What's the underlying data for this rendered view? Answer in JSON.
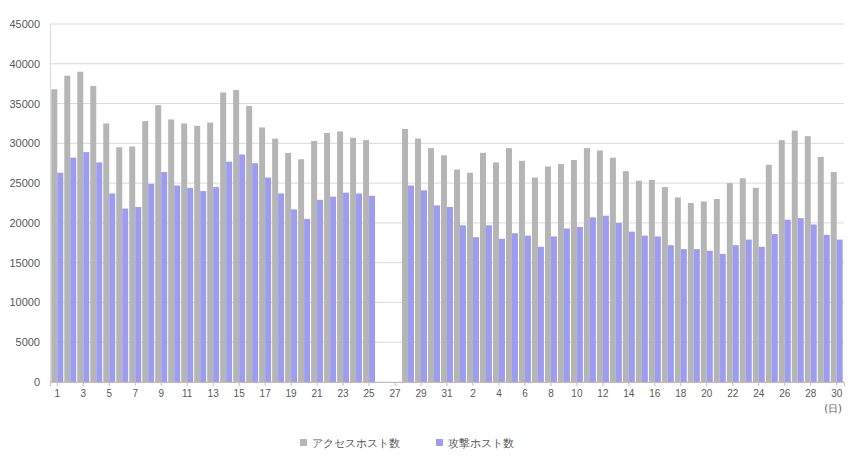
{
  "chart_data": {
    "type": "bar",
    "x_label": "(日)",
    "categories": [
      "1",
      null,
      "3",
      null,
      "5",
      null,
      "7",
      null,
      "9",
      null,
      "11",
      null,
      "13",
      null,
      "15",
      null,
      "17",
      null,
      "19",
      null,
      "21",
      null,
      "23",
      null,
      "25",
      null,
      "27",
      null,
      "29",
      null,
      "31",
      null,
      "2",
      null,
      "4",
      null,
      "6",
      null,
      "8",
      null,
      "10",
      null,
      "12",
      null,
      "14",
      null,
      "16",
      null,
      "18",
      null,
      "20",
      null,
      "22",
      null,
      "24",
      null,
      "26",
      null,
      "28",
      null,
      "30"
    ],
    "series": [
      {
        "name": "アクセスホスト数",
        "color": "#b5b5b5",
        "values": [
          36800,
          38500,
          39000,
          37200,
          32500,
          29500,
          29600,
          32800,
          34800,
          33000,
          32500,
          32200,
          32600,
          36400,
          36700,
          34700,
          32000,
          30600,
          28800,
          28000,
          30300,
          31300,
          31500,
          30700,
          30400,
          null,
          null,
          31800,
          30600,
          29400,
          28500,
          26700,
          26300,
          28800,
          27600,
          29400,
          27800,
          25700,
          27100,
          27400,
          27900,
          29400,
          29100,
          28200,
          26500,
          25300,
          25400,
          24500,
          23200,
          22500,
          22700,
          23000,
          25000,
          25600,
          24400,
          27300,
          30400,
          31600,
          30900,
          28300,
          26400
        ]
      },
      {
        "name": "攻撃ホスト数",
        "color": "#9c9cf0",
        "values": [
          26300,
          28200,
          28900,
          27600,
          23700,
          21800,
          22000,
          24900,
          26400,
          24700,
          24400,
          24000,
          24500,
          27700,
          28600,
          27500,
          25700,
          23700,
          21700,
          20500,
          22900,
          23300,
          23800,
          23700,
          23400,
          null,
          null,
          24700,
          24100,
          22200,
          22000,
          19700,
          18200,
          19700,
          18000,
          18700,
          18400,
          17000,
          18300,
          19300,
          19500,
          20700,
          20900,
          20000,
          18900,
          18400,
          18300,
          17200,
          16700,
          16700,
          16500,
          16100,
          17200,
          17900,
          17000,
          18600,
          20400,
          20600,
          19800,
          18500,
          17900
        ]
      }
    ],
    "ylim": [
      0,
      45000
    ],
    "yticks": [
      0,
      5000,
      10000,
      15000,
      20000,
      25000,
      30000,
      35000,
      40000,
      45000
    ],
    "grid": true,
    "legend": "bottom"
  }
}
